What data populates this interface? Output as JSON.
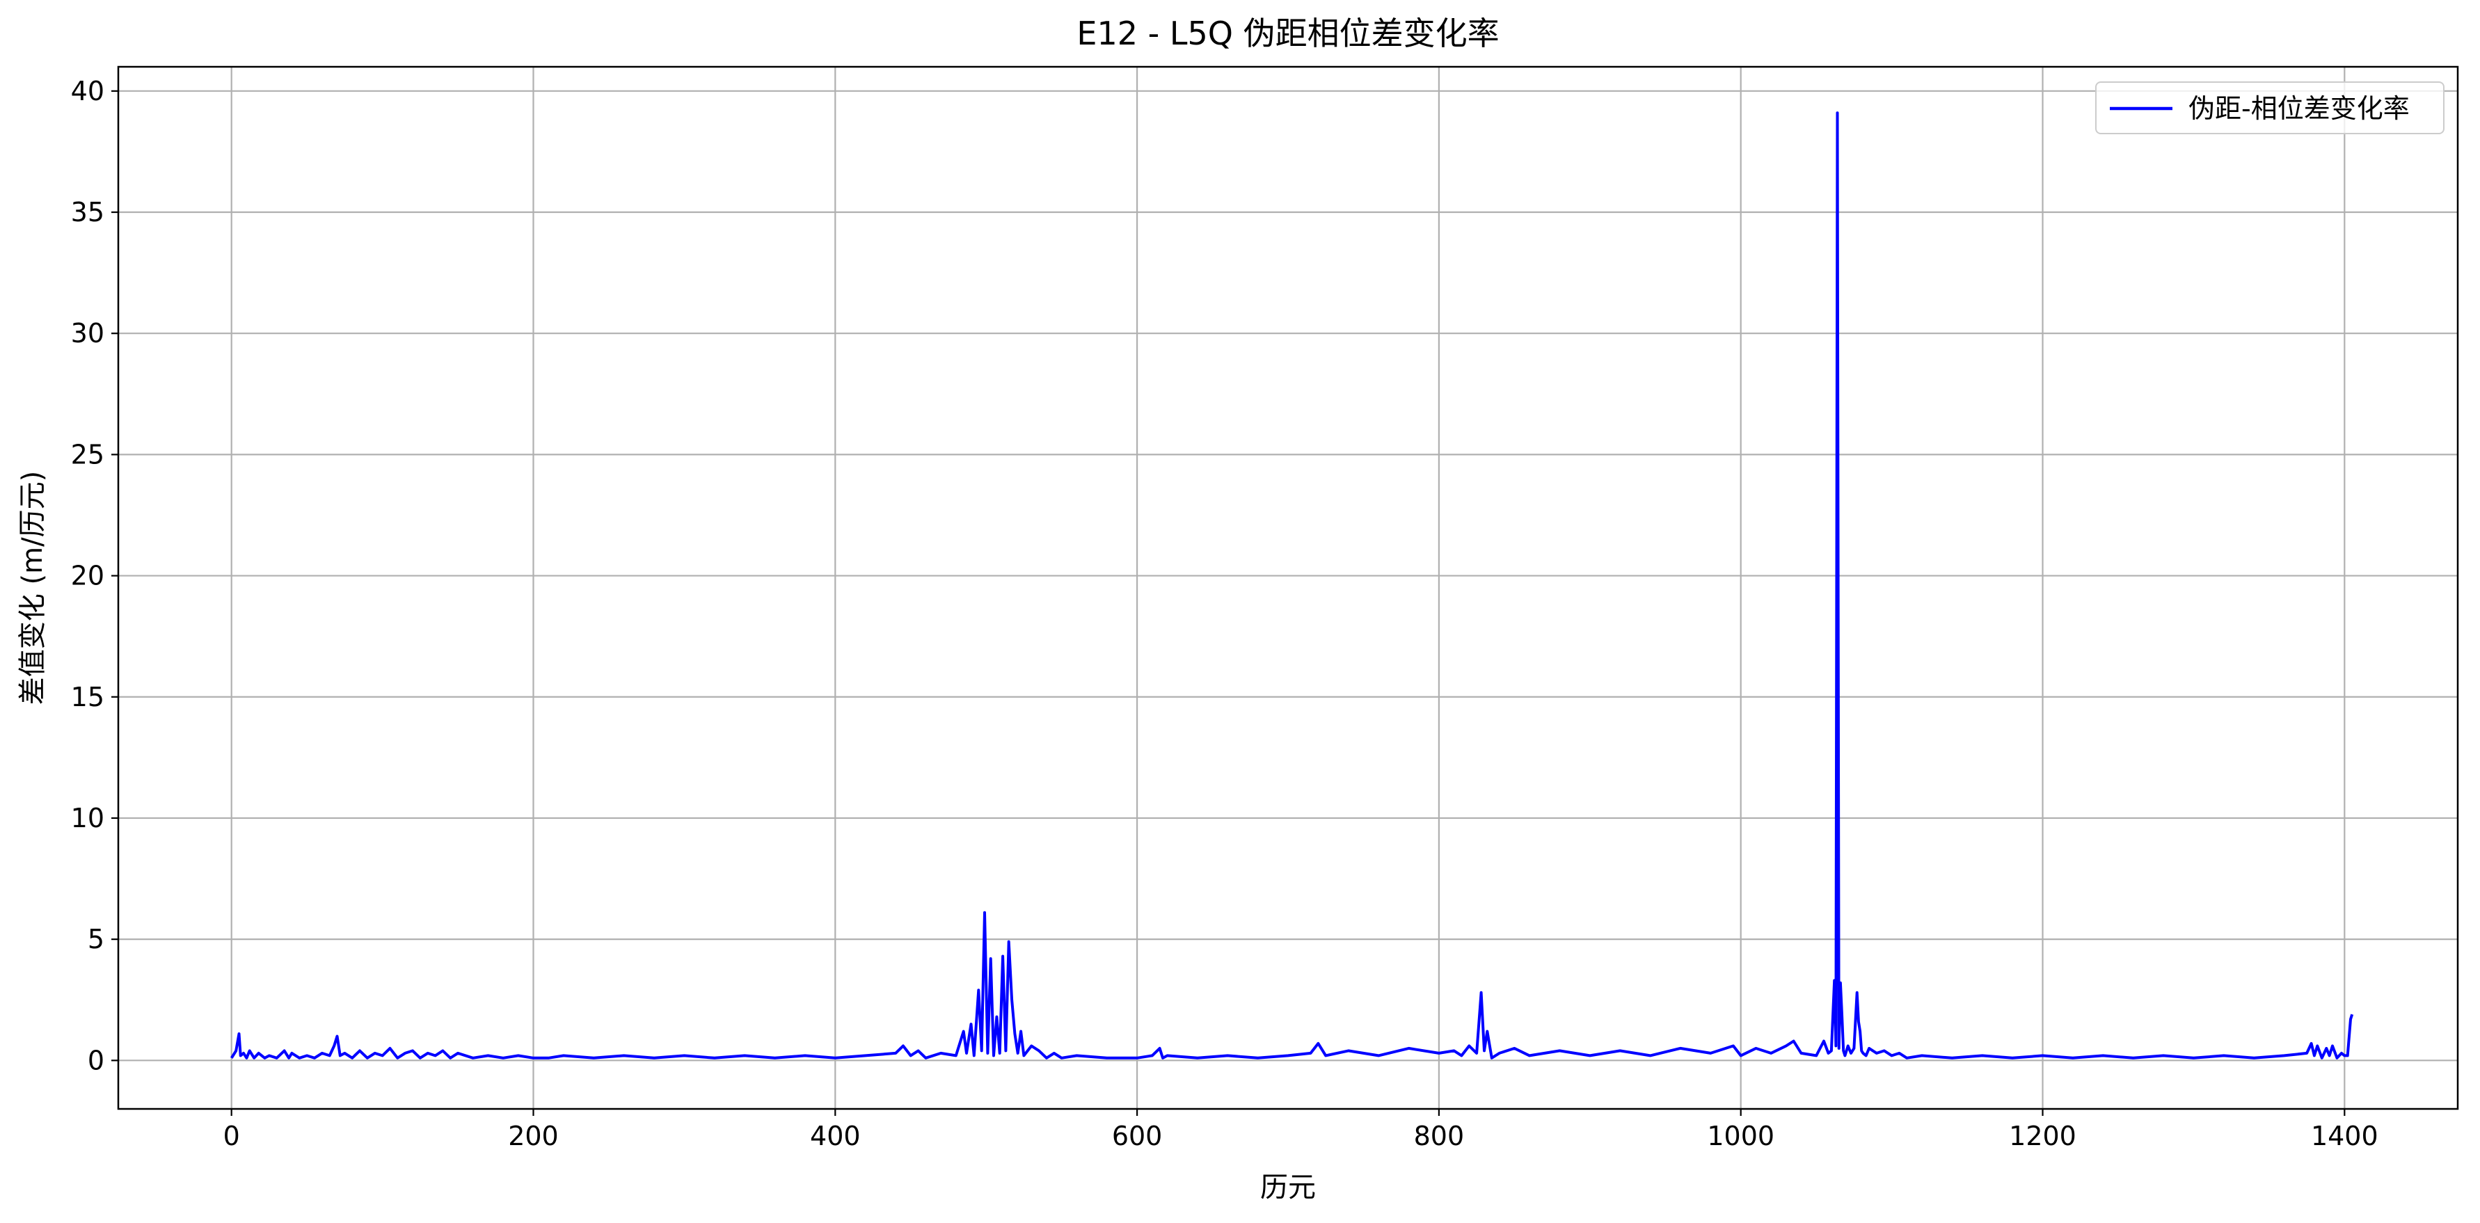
{
  "chart_data": {
    "type": "line",
    "title": "E12 - L5Q 伪距相位差变化率",
    "xlabel": "历元",
    "ylabel": "差值变化 (m/历元)",
    "xlim": [
      -75,
      1475
    ],
    "ylim": [
      -2.0,
      41.0
    ],
    "xticks": [
      0,
      200,
      400,
      600,
      800,
      1000,
      1200,
      1400
    ],
    "yticks": [
      0,
      5,
      10,
      15,
      20,
      25,
      30,
      35,
      40
    ],
    "grid": true,
    "legend_position": "top-right",
    "series": [
      {
        "name": "伪距-相位差变化率",
        "color": "#0000ff",
        "x": [
          0,
          3,
          5,
          6,
          8,
          10,
          12,
          15,
          18,
          22,
          25,
          30,
          35,
          38,
          40,
          45,
          50,
          55,
          60,
          65,
          68,
          70,
          72,
          75,
          80,
          85,
          90,
          95,
          100,
          105,
          110,
          115,
          120,
          125,
          130,
          135,
          140,
          145,
          150,
          160,
          170,
          180,
          190,
          200,
          210,
          220,
          240,
          260,
          280,
          300,
          320,
          340,
          360,
          380,
          400,
          420,
          440,
          445,
          450,
          455,
          460,
          470,
          480,
          485,
          487,
          490,
          492,
          495,
          497,
          499,
          501,
          503,
          505,
          507,
          509,
          511,
          513,
          515,
          517,
          519,
          521,
          523,
          525,
          530,
          535,
          540,
          545,
          550,
          560,
          580,
          600,
          610,
          615,
          617,
          620,
          640,
          660,
          680,
          700,
          715,
          720,
          725,
          740,
          760,
          780,
          800,
          810,
          815,
          820,
          825,
          828,
          830,
          832,
          835,
          840,
          850,
          860,
          880,
          900,
          920,
          940,
          960,
          980,
          995,
          1000,
          1010,
          1020,
          1030,
          1035,
          1040,
          1050,
          1055,
          1058,
          1060,
          1062,
          1063,
          1064,
          1065,
          1066,
          1067,
          1068,
          1069,
          1071,
          1073,
          1075,
          1077,
          1078,
          1079,
          1080,
          1081,
          1083,
          1085,
          1090,
          1095,
          1100,
          1105,
          1110,
          1120,
          1140,
          1160,
          1180,
          1200,
          1220,
          1240,
          1260,
          1280,
          1300,
          1320,
          1340,
          1360,
          1375,
          1378,
          1380,
          1382,
          1385,
          1388,
          1390,
          1392,
          1395,
          1398,
          1400,
          1402,
          1404,
          1405
        ],
        "y": [
          0.1,
          0.4,
          1.1,
          0.2,
          0.3,
          0.1,
          0.4,
          0.1,
          0.3,
          0.1,
          0.2,
          0.1,
          0.4,
          0.1,
          0.3,
          0.1,
          0.2,
          0.1,
          0.3,
          0.2,
          0.6,
          1.0,
          0.2,
          0.3,
          0.1,
          0.4,
          0.1,
          0.3,
          0.2,
          0.5,
          0.1,
          0.3,
          0.4,
          0.1,
          0.3,
          0.2,
          0.4,
          0.1,
          0.3,
          0.1,
          0.2,
          0.1,
          0.2,
          0.1,
          0.1,
          0.2,
          0.1,
          0.2,
          0.1,
          0.2,
          0.1,
          0.2,
          0.1,
          0.2,
          0.1,
          0.2,
          0.3,
          0.6,
          0.2,
          0.4,
          0.1,
          0.3,
          0.2,
          1.2,
          0.3,
          1.5,
          0.2,
          2.9,
          0.4,
          6.1,
          0.3,
          4.2,
          0.2,
          1.8,
          0.3,
          4.3,
          0.4,
          4.9,
          2.5,
          1.1,
          0.3,
          1.2,
          0.2,
          0.6,
          0.4,
          0.1,
          0.3,
          0.1,
          0.2,
          0.1,
          0.1,
          0.2,
          0.5,
          0.1,
          0.2,
          0.1,
          0.2,
          0.1,
          0.2,
          0.3,
          0.7,
          0.2,
          0.4,
          0.2,
          0.5,
          0.3,
          0.4,
          0.2,
          0.6,
          0.3,
          2.8,
          0.4,
          1.2,
          0.1,
          0.3,
          0.5,
          0.2,
          0.4,
          0.2,
          0.4,
          0.2,
          0.5,
          0.3,
          0.6,
          0.2,
          0.5,
          0.3,
          0.6,
          0.8,
          0.3,
          0.2,
          0.8,
          0.3,
          0.4,
          3.3,
          0.6,
          39.1,
          0.5,
          3.2,
          1.9,
          0.4,
          0.2,
          0.6,
          0.3,
          0.5,
          2.8,
          1.6,
          1.2,
          0.4,
          0.3,
          0.2,
          0.5,
          0.3,
          0.4,
          0.2,
          0.3,
          0.1,
          0.2,
          0.1,
          0.2,
          0.1,
          0.2,
          0.1,
          0.2,
          0.1,
          0.2,
          0.1,
          0.2,
          0.1,
          0.2,
          0.3,
          0.7,
          0.2,
          0.6,
          0.1,
          0.5,
          0.2,
          0.6,
          0.1,
          0.3,
          0.2,
          0.2,
          1.7,
          1.9
        ]
      }
    ]
  }
}
